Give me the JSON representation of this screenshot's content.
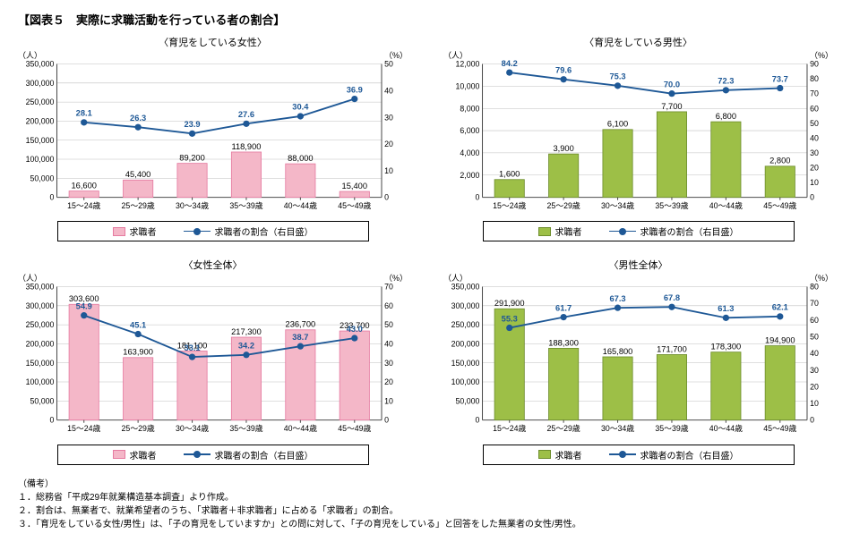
{
  "title": "【図表５　実際に求職活動を行っている者の割合】",
  "leftUnit": "（人）",
  "rightUnit": "（%）",
  "categories": [
    "15～24歳",
    "25～29歳",
    "30～34歳",
    "35～39歳",
    "40～44歳",
    "45～49歳"
  ],
  "legend": {
    "bar": "求職者",
    "line": "求職者の割合（右目盛）"
  },
  "colors": {
    "line": "#1e5896",
    "grid": "#bfbfbf",
    "axis": "#4d4d4d",
    "pinkFill": "#f4b7c8",
    "pinkStroke": "#e67ba1",
    "greenFill": "#9dbf47",
    "greenStroke": "#6e8e2d"
  },
  "panels": [
    {
      "subtitle": "〈育児をしている女性〉",
      "barColor": "pink",
      "yLeftMax": 350000,
      "yLeftStep": 50000,
      "yRightMax": 50,
      "yRightStep": 10,
      "bars": [
        16600,
        45400,
        89200,
        118900,
        88000,
        15400
      ],
      "barLabels": [
        "16,600",
        "45,400",
        "89,200",
        "118,900",
        "88,000",
        "15,400"
      ],
      "line": [
        28.1,
        26.3,
        23.9,
        27.6,
        30.4,
        36.9
      ],
      "lineLabels": [
        "28.1",
        "26.3",
        "23.9",
        "27.6",
        "30.4",
        "36.9"
      ]
    },
    {
      "subtitle": "〈育児をしている男性〉",
      "barColor": "green",
      "yLeftMax": 12000,
      "yLeftStep": 2000,
      "yRightMax": 90,
      "yRightStep": 10,
      "bars": [
        1600,
        3900,
        6100,
        7700,
        6800,
        2800
      ],
      "barLabels": [
        "1,600",
        "3,900",
        "6,100",
        "7,700",
        "6,800",
        "2,800"
      ],
      "line": [
        84.2,
        79.6,
        75.3,
        70.0,
        72.3,
        73.7
      ],
      "lineLabels": [
        "84.2",
        "79.6",
        "75.3",
        "70.0",
        "72.3",
        "73.7"
      ]
    },
    {
      "subtitle": "〈女性全体〉",
      "barColor": "pink",
      "yLeftMax": 350000,
      "yLeftStep": 50000,
      "yRightMax": 70,
      "yRightStep": 10,
      "bars": [
        303600,
        163900,
        181100,
        217300,
        236700,
        233700
      ],
      "barLabels": [
        "303,600",
        "163,900",
        "181,100",
        "217,300",
        "236,700",
        "233,700"
      ],
      "line": [
        54.9,
        45.1,
        33.1,
        34.2,
        38.7,
        43.0
      ],
      "lineLabels": [
        "54.9",
        "45.1",
        "33.1",
        "34.2",
        "38.7",
        "43.0"
      ]
    },
    {
      "subtitle": "〈男性全体〉",
      "barColor": "green",
      "yLeftMax": 350000,
      "yLeftStep": 50000,
      "yRightMax": 80,
      "yRightStep": 10,
      "bars": [
        291900,
        188300,
        165800,
        171700,
        178300,
        194900
      ],
      "barLabels": [
        "291,900",
        "188,300",
        "165,800",
        "171,700",
        "178,300",
        "194,900"
      ],
      "line": [
        55.3,
        61.7,
        67.3,
        67.8,
        61.3,
        62.1
      ],
      "lineLabels": [
        "55.3",
        "61.7",
        "67.3",
        "67.8",
        "61.3",
        "62.1"
      ]
    }
  ],
  "notes": [
    "（備考）",
    "１．総務省「平成29年就業構造基本調査」より作成。",
    "２．割合は、無業者で、就業希望者のうち、「求職者＋非求職者」に占める「求職者」の割合。",
    "３．「育児をしている女性/男性」は、「子の育児をしていますか」との問に対して、「子の育児をしている」と回答をした無業者の女性/男性。"
  ]
}
